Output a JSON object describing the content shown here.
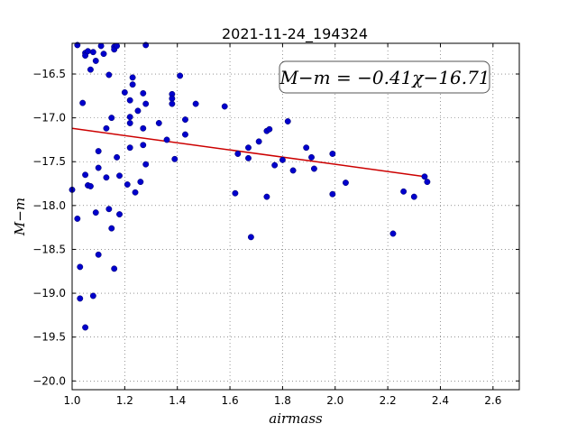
{
  "chart_data": {
    "type": "scatter",
    "title": "2021-11-24_194324",
    "xlabel": "airmass",
    "ylabel": "M−m",
    "xlim": [
      1.0,
      2.7
    ],
    "ylim": [
      -20.1,
      -16.15
    ],
    "grid": true,
    "x_ticks": [
      1.0,
      1.2,
      1.4,
      1.6,
      1.8,
      2.0,
      2.2,
      2.4,
      2.6
    ],
    "x_tick_labels": [
      "1.0",
      "1.2",
      "1.4",
      "1.6",
      "1.8",
      "2.0",
      "2.2",
      "2.4",
      "2.6"
    ],
    "y_ticks": [
      -16.5,
      -17.0,
      -17.5,
      -18.0,
      -18.5,
      -19.0,
      -19.5,
      -20.0
    ],
    "y_tick_labels": [
      "−16.5",
      "−17.0",
      "−17.5",
      "−18.0",
      "−18.5",
      "−19.0",
      "−19.5",
      "−20.0"
    ],
    "point_color": "#0000cc",
    "fit_color": "#cc0000",
    "annotation": "M−m = −0.41χ−16.71",
    "annotation_position": "top-right",
    "fit": {
      "slope": -0.41,
      "intercept": -16.71,
      "x_range": [
        1.0,
        2.34
      ]
    },
    "points": [
      [
        1.0,
        -17.82
      ],
      [
        1.02,
        -16.17
      ],
      [
        1.02,
        -18.15
      ],
      [
        1.03,
        -18.7
      ],
      [
        1.03,
        -19.06
      ],
      [
        1.04,
        -16.83
      ],
      [
        1.05,
        -16.26
      ],
      [
        1.05,
        -16.29
      ],
      [
        1.05,
        -17.65
      ],
      [
        1.05,
        -19.39
      ],
      [
        1.06,
        -16.24
      ],
      [
        1.06,
        -17.77
      ],
      [
        1.07,
        -16.45
      ],
      [
        1.07,
        -17.78
      ],
      [
        1.08,
        -16.25
      ],
      [
        1.08,
        -19.03
      ],
      [
        1.09,
        -18.08
      ],
      [
        1.09,
        -16.35
      ],
      [
        1.1,
        -17.38
      ],
      [
        1.1,
        -17.57
      ],
      [
        1.1,
        -18.56
      ],
      [
        1.11,
        -16.18
      ],
      [
        1.12,
        -16.27
      ],
      [
        1.13,
        -17.12
      ],
      [
        1.13,
        -17.68
      ],
      [
        1.14,
        -16.51
      ],
      [
        1.14,
        -18.04
      ],
      [
        1.15,
        -18.26
      ],
      [
        1.15,
        -17.0
      ],
      [
        1.16,
        -16.19
      ],
      [
        1.16,
        -16.22
      ],
      [
        1.16,
        -18.72
      ],
      [
        1.17,
        -16.18
      ],
      [
        1.17,
        -17.45
      ],
      [
        1.18,
        -17.66
      ],
      [
        1.18,
        -18.1
      ],
      [
        1.2,
        -16.71
      ],
      [
        1.21,
        -17.76
      ],
      [
        1.22,
        -17.34
      ],
      [
        1.22,
        -17.06
      ],
      [
        1.22,
        -16.99
      ],
      [
        1.22,
        -16.8
      ],
      [
        1.23,
        -16.54
      ],
      [
        1.23,
        -16.62
      ],
      [
        1.24,
        -17.85
      ],
      [
        1.25,
        -16.92
      ],
      [
        1.26,
        -17.73
      ],
      [
        1.27,
        -17.31
      ],
      [
        1.27,
        -16.72
      ],
      [
        1.27,
        -17.12
      ],
      [
        1.28,
        -17.53
      ],
      [
        1.28,
        -16.17
      ],
      [
        1.28,
        -16.84
      ],
      [
        1.33,
        -17.06
      ],
      [
        1.36,
        -17.25
      ],
      [
        1.38,
        -16.73
      ],
      [
        1.38,
        -16.78
      ],
      [
        1.38,
        -16.84
      ],
      [
        1.39,
        -17.47
      ],
      [
        1.41,
        -16.52
      ],
      [
        1.43,
        -17.02
      ],
      [
        1.43,
        -17.19
      ],
      [
        1.47,
        -16.84
      ],
      [
        1.58,
        -16.87
      ],
      [
        1.62,
        -17.86
      ],
      [
        1.63,
        -17.41
      ],
      [
        1.67,
        -17.46
      ],
      [
        1.67,
        -17.34
      ],
      [
        1.68,
        -18.36
      ],
      [
        1.71,
        -17.27
      ],
      [
        1.74,
        -17.9
      ],
      [
        1.74,
        -17.15
      ],
      [
        1.75,
        -17.13
      ],
      [
        1.77,
        -17.54
      ],
      [
        1.8,
        -17.48
      ],
      [
        1.82,
        -17.04
      ],
      [
        1.84,
        -17.6
      ],
      [
        1.89,
        -17.34
      ],
      [
        1.91,
        -17.45
      ],
      [
        1.92,
        -17.58
      ],
      [
        1.99,
        -17.41
      ],
      [
        1.99,
        -17.87
      ],
      [
        2.04,
        -17.74
      ],
      [
        2.22,
        -18.32
      ],
      [
        2.26,
        -17.84
      ],
      [
        2.3,
        -17.9
      ],
      [
        2.34,
        -17.67
      ],
      [
        2.35,
        -17.73
      ]
    ]
  }
}
